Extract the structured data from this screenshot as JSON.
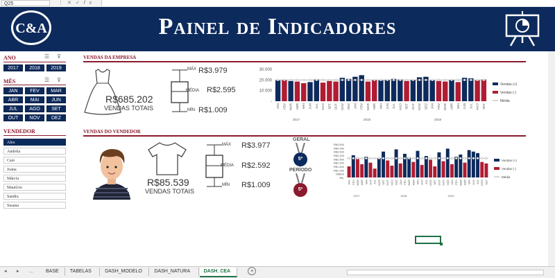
{
  "formula_bar": {
    "name_box": "Q25"
  },
  "header": {
    "logo_text": "C&A",
    "title": "Painel de Indicadores"
  },
  "filters": {
    "ano_label": "ANO",
    "anos": [
      "2017",
      "2018",
      "2019"
    ],
    "mes_label": "MÊS",
    "meses": [
      "JAN",
      "FEV",
      "MAR",
      "ABR",
      "MAI",
      "JUN",
      "JUL",
      "AGO",
      "SET",
      "OUT",
      "NOV",
      "DEZ"
    ],
    "vendedor_label": "VENDEDOR",
    "vendedores": [
      "Alex",
      "Andréia",
      "Caio",
      "Joana",
      "Márcia",
      "Maurício",
      "Sandra",
      "Susana"
    ]
  },
  "empresa": {
    "section_title": "VENDAS DA EMPRESA",
    "total_value": "R$685.202",
    "total_label": "VENDAS TOTAIS",
    "max_label": "MÁX",
    "max_value": "R$3.979",
    "media_label": "MÉDIA",
    "media_value": "R$2.595",
    "min_label": "MÍN",
    "min_value": "R$1.009"
  },
  "vendedor": {
    "section_title": "VENDAS DO VENDEDOR",
    "total_value": "R$85.539",
    "total_label": "VENDAS TOTAIS",
    "max_label": "MÁX",
    "max_value": "R$3.977",
    "media_label": "MÉDIA",
    "media_value": "R$2.592",
    "min_label": "MÍN",
    "min_value": "R$1.009",
    "geral_label": "GERAL",
    "geral_rank": "5º",
    "periodo_label": "PERÍODO",
    "periodo_rank": "5º"
  },
  "colors": {
    "navy": "#0d2a5c",
    "red": "#b01c33",
    "accent": "#8b1a2e"
  },
  "chart_data": [
    {
      "type": "bar",
      "categories": [
        "JAN",
        "FEV",
        "MAR",
        "ABR",
        "MAI",
        "JUN",
        "JUL",
        "AGO",
        "SET",
        "OUT",
        "NOV",
        "DEZ",
        "JAN",
        "FEV",
        "MAR",
        "ABR",
        "MAI",
        "JUN",
        "JUL",
        "AGO",
        "SET",
        "OUT",
        "NOV",
        "DEZ",
        "JAN",
        "FEV",
        "MAR",
        "ABR",
        "MAI",
        "JUN",
        "JUL",
        "AGO",
        "SET"
      ],
      "groups": [
        "2017",
        "2018",
        "2019"
      ],
      "values": [
        19500,
        20000,
        19000,
        18500,
        17000,
        18000,
        20500,
        17500,
        19000,
        18500,
        22000,
        21000,
        23000,
        24500,
        18500,
        20000,
        19500,
        20000,
        21000,
        20500,
        19000,
        20000,
        22500,
        23000,
        19500,
        19000,
        18500,
        20000,
        18000,
        22000,
        21500,
        19500,
        20500
      ],
      "above_avg": [
        true,
        false,
        true,
        false,
        false,
        true,
        true,
        false,
        false,
        false,
        true,
        true,
        true,
        true,
        false,
        false,
        true,
        true,
        true,
        true,
        false,
        true,
        true,
        true,
        true,
        false,
        false,
        true,
        false,
        true,
        true,
        false,
        false
      ],
      "average": 20000,
      "ylim": [
        0,
        30000
      ],
      "yticks": [
        "30.000",
        "20.000",
        "10.000",
        "-"
      ],
      "legend": [
        "Vendas (+)",
        "Vendas (-)",
        "Média"
      ],
      "legend_position": "right"
    },
    {
      "type": "bar",
      "categories": [
        "JAN",
        "FEV",
        "MAR",
        "ABR",
        "MAI",
        "JUN",
        "JUL",
        "AGO",
        "SET",
        "OUT",
        "NOV",
        "DEZ",
        "JAN",
        "FEV",
        "MAR",
        "ABR",
        "MAI",
        "JUN",
        "JUL",
        "AGO",
        "SET",
        "OUT",
        "NOV",
        "DEZ",
        "JAN",
        "FEV",
        "MAR",
        "ABR",
        "MAI",
        "JUN",
        "JUL",
        "AGO",
        "SET"
      ],
      "groups": [
        "2017",
        "2018",
        "2019"
      ],
      "values": [
        1500,
        3000,
        2500,
        1800,
        2800,
        2000,
        1200,
        2600,
        3500,
        2300,
        1600,
        3800,
        1900,
        3200,
        2700,
        2100,
        3600,
        1700,
        2900,
        2400,
        1500,
        3400,
        2200,
        3900,
        1800,
        2800,
        3100,
        2000,
        3700,
        3500,
        3300,
        2100,
        1900
      ],
      "above_avg": [
        false,
        true,
        false,
        false,
        true,
        false,
        false,
        true,
        true,
        false,
        false,
        true,
        false,
        true,
        true,
        false,
        true,
        false,
        true,
        false,
        false,
        true,
        false,
        true,
        false,
        true,
        true,
        false,
        true,
        true,
        true,
        false,
        false
      ],
      "average": 2600,
      "ylim": [
        0,
        4500
      ],
      "yticks": [
        "R$4.500",
        "R$4.000",
        "R$3.500",
        "R$3.000",
        "R$2.500",
        "R$2.000",
        "R$1.500",
        "R$1.000",
        "R$500",
        "R$-"
      ],
      "legend": [
        "Vendas (+)",
        "Vendas (-)",
        "Média"
      ],
      "legend_position": "right"
    }
  ],
  "tabs": {
    "nav": [
      "◂",
      "▸",
      "..."
    ],
    "sheets": [
      "BASE",
      "TABELAS",
      "DASH_MODELO",
      "DASH_NATURA",
      "DASH_CEA"
    ],
    "active": "DASH_CEA",
    "add": "+"
  }
}
